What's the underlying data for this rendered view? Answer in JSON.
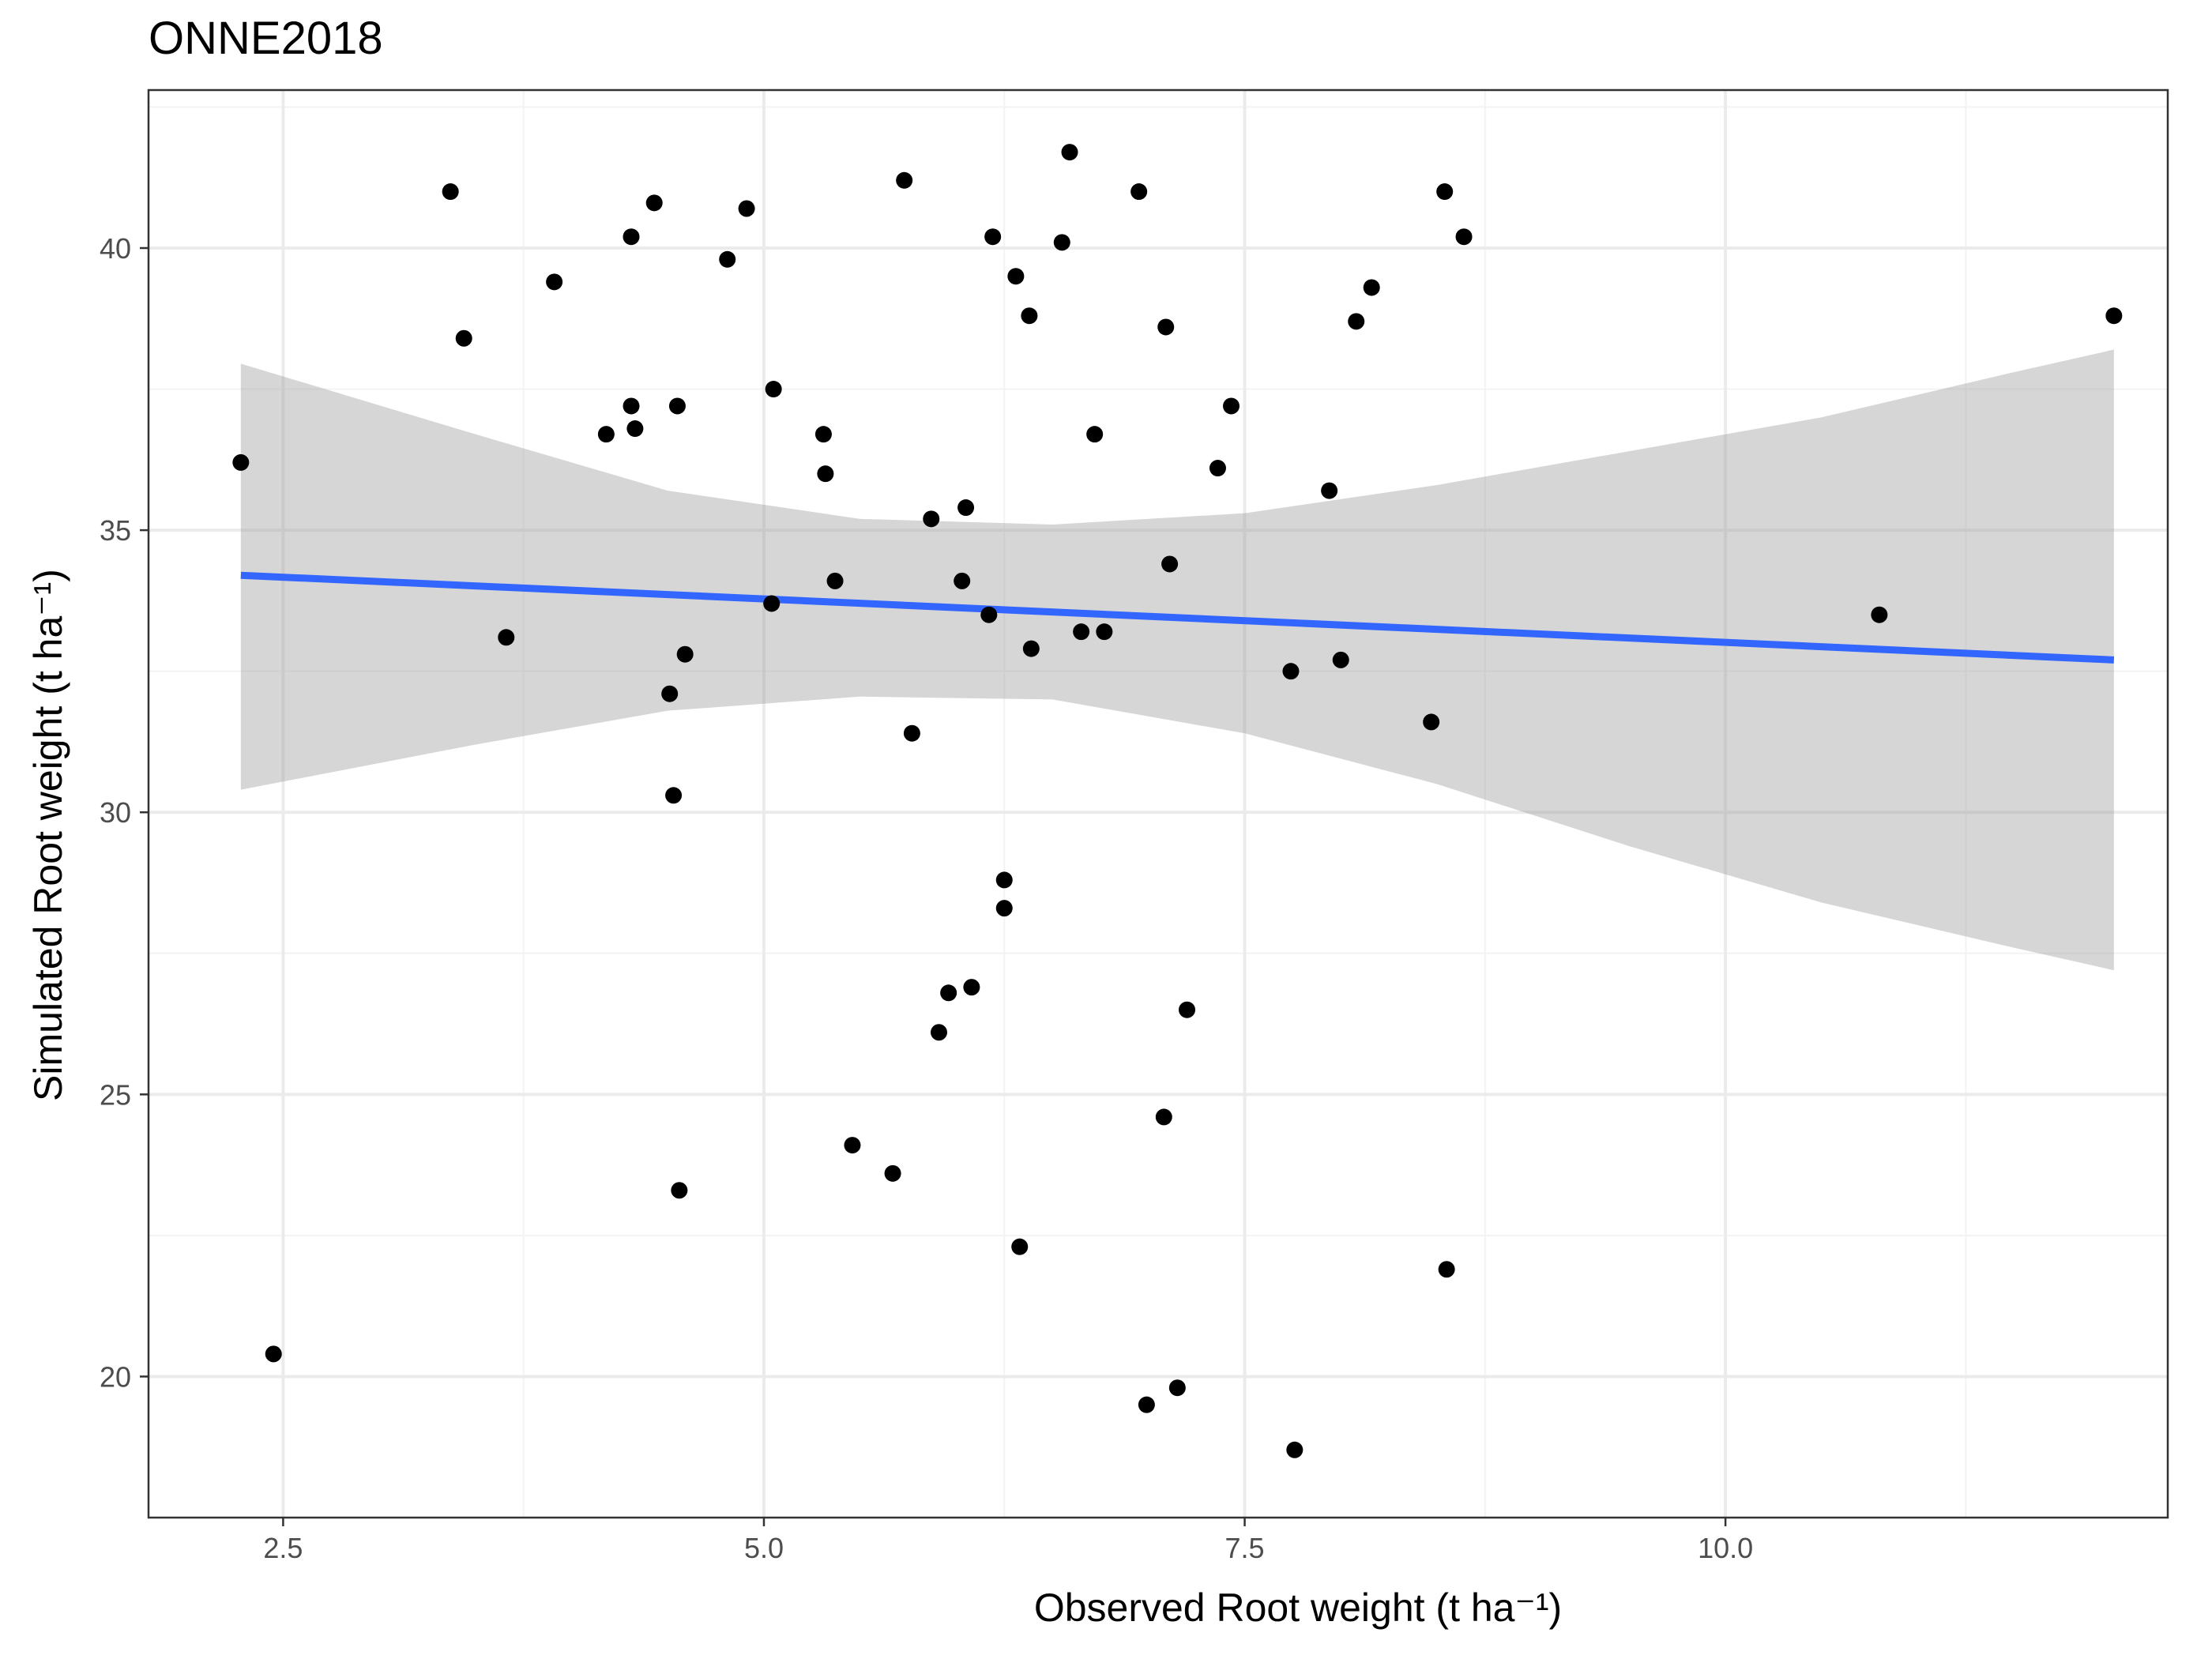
{
  "chart_data": {
    "type": "scatter",
    "title": "ONNE2018",
    "xlabel": "Observed Root weight (t ha⁻¹)",
    "ylabel": "Simulated Root weight (t ha⁻¹)",
    "xlim": [
      1.8,
      12.3
    ],
    "ylim": [
      17.5,
      42.8
    ],
    "xticks": [
      2.5,
      5.0,
      7.5,
      10.0
    ],
    "xtick_labels": [
      "2.5",
      "5.0",
      "7.5",
      "10.0"
    ],
    "yticks": [
      20,
      25,
      30,
      35,
      40
    ],
    "ytick_labels": [
      "20",
      "25",
      "30",
      "35",
      "40"
    ],
    "grid": true,
    "points": [
      [
        2.28,
        36.2
      ],
      [
        2.45,
        20.4
      ],
      [
        3.37,
        41.0
      ],
      [
        3.44,
        38.4
      ],
      [
        3.66,
        33.1
      ],
      [
        3.91,
        39.4
      ],
      [
        4.18,
        36.7
      ],
      [
        4.31,
        40.2
      ],
      [
        4.31,
        37.2
      ],
      [
        4.33,
        36.8
      ],
      [
        4.43,
        40.8
      ],
      [
        4.51,
        32.1
      ],
      [
        4.53,
        30.3
      ],
      [
        4.55,
        37.2
      ],
      [
        4.56,
        23.3
      ],
      [
        4.59,
        32.8
      ],
      [
        4.81,
        39.8
      ],
      [
        4.91,
        40.7
      ],
      [
        5.04,
        33.7
      ],
      [
        5.05,
        37.5
      ],
      [
        5.31,
        36.7
      ],
      [
        5.32,
        36.0
      ],
      [
        5.37,
        34.1
      ],
      [
        5.46,
        24.1
      ],
      [
        5.67,
        23.6
      ],
      [
        5.73,
        41.2
      ],
      [
        5.77,
        31.4
      ],
      [
        5.87,
        35.2
      ],
      [
        5.91,
        26.1
      ],
      [
        5.96,
        26.8
      ],
      [
        6.03,
        34.1
      ],
      [
        6.05,
        35.4
      ],
      [
        6.08,
        26.9
      ],
      [
        6.17,
        33.5
      ],
      [
        6.19,
        40.2
      ],
      [
        6.25,
        28.8
      ],
      [
        6.25,
        28.3
      ],
      [
        6.31,
        39.5
      ],
      [
        6.33,
        22.3
      ],
      [
        6.38,
        38.8
      ],
      [
        6.39,
        32.9
      ],
      [
        6.55,
        40.1
      ],
      [
        6.59,
        41.7
      ],
      [
        6.65,
        33.2
      ],
      [
        6.72,
        36.7
      ],
      [
        6.77,
        33.2
      ],
      [
        6.95,
        41.0
      ],
      [
        6.99,
        19.5
      ],
      [
        7.08,
        24.6
      ],
      [
        7.09,
        38.6
      ],
      [
        7.11,
        34.4
      ],
      [
        7.15,
        19.8
      ],
      [
        7.2,
        26.5
      ],
      [
        7.36,
        36.1
      ],
      [
        7.43,
        37.2
      ],
      [
        7.74,
        32.5
      ],
      [
        7.76,
        18.7
      ],
      [
        7.94,
        35.7
      ],
      [
        8.0,
        32.7
      ],
      [
        8.08,
        38.7
      ],
      [
        8.16,
        39.3
      ],
      [
        8.47,
        31.6
      ],
      [
        8.54,
        41.0
      ],
      [
        8.55,
        21.9
      ],
      [
        8.64,
        40.2
      ],
      [
        10.8,
        33.5
      ],
      [
        12.02,
        38.8
      ]
    ],
    "trend": {
      "method": "lm",
      "x_range": [
        2.28,
        12.02
      ],
      "y_start": 34.2,
      "y_end": 32.7,
      "ci_lower": [
        [
          2.28,
          30.4
        ],
        [
          3.5,
          31.2
        ],
        [
          4.5,
          31.8
        ],
        [
          5.5,
          32.05
        ],
        [
          6.5,
          32.0
        ],
        [
          7.5,
          31.4
        ],
        [
          8.5,
          30.5
        ],
        [
          9.5,
          29.4
        ],
        [
          10.5,
          28.4
        ],
        [
          11.5,
          27.6
        ],
        [
          12.02,
          27.2
        ]
      ],
      "ci_upper": [
        [
          2.28,
          37.95
        ],
        [
          3.5,
          36.7
        ],
        [
          4.5,
          35.7
        ],
        [
          5.5,
          35.2
        ],
        [
          6.5,
          35.1
        ],
        [
          7.5,
          35.3
        ],
        [
          8.5,
          35.8
        ],
        [
          9.5,
          36.4
        ],
        [
          10.5,
          37.0
        ],
        [
          11.5,
          37.8
        ],
        [
          12.02,
          38.2
        ]
      ]
    },
    "colors": {
      "points": "#000000",
      "trend_line": "#3366ff",
      "ci_band": "#999999"
    },
    "legend": "none"
  }
}
